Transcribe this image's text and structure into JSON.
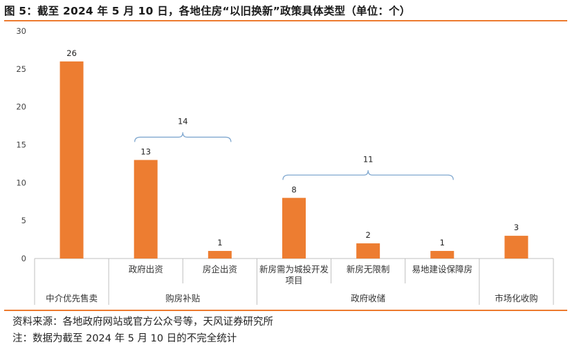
{
  "title": "图 5：截至 2024 年 5 月 10 日，各地住房“以旧换新”政策具体类型（单位：个）",
  "footer": {
    "source": "资料来源：各地政府网站或官方公众号等，天风证券研究所",
    "note": "注：数据为截至 2024 年 5 月 10 日的不完全统计"
  },
  "colors": {
    "bar": "#ed7d31",
    "brace": "#7fa7cf",
    "rule": "#ec7a2e"
  },
  "chart_data": {
    "type": "bar",
    "categories": [
      "中介优先售卖",
      "政府出资",
      "房企出资",
      "新房需为城投开发项目",
      "新房无限制",
      "易地建设保障房",
      "市场化收购"
    ],
    "category_label_lines": [
      [
        "中介优先售卖"
      ],
      [
        "政府出资"
      ],
      [
        "房企出资"
      ],
      [
        "新房需为城投开发",
        "项目"
      ],
      [
        "新房无限制"
      ],
      [
        "易地建设保障房"
      ],
      [
        "市场化收购"
      ]
    ],
    "values": [
      26,
      13,
      1,
      8,
      2,
      1,
      3
    ],
    "groups": [
      {
        "label": "中介优先售卖",
        "start": 0,
        "end": 0
      },
      {
        "label": "购房补贴",
        "start": 1,
        "end": 2
      },
      {
        "label": "政府收储",
        "start": 3,
        "end": 5
      },
      {
        "label": "市场化收购",
        "start": 6,
        "end": 6
      }
    ],
    "group_totals": [
      {
        "label": "14",
        "start": 1,
        "end": 2
      },
      {
        "label": "11",
        "start": 3,
        "end": 5
      }
    ],
    "ylim": [
      0,
      30
    ],
    "yticks": [
      0,
      5,
      10,
      15,
      20,
      25,
      30
    ],
    "grid": false,
    "data_labels": true
  }
}
